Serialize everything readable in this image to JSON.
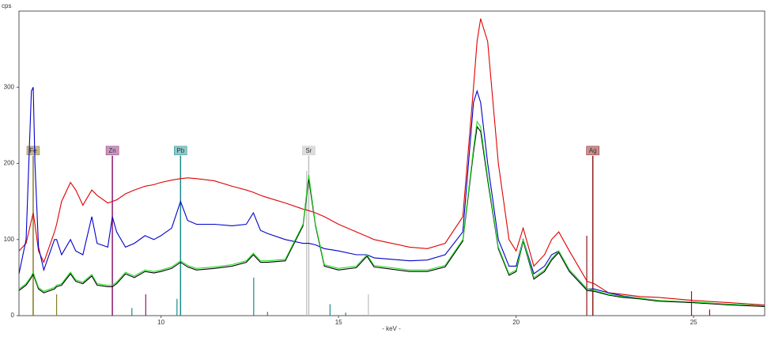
{
  "chart_data": {
    "type": "line",
    "ylabel": "cps",
    "xlabel": "- keV -",
    "xlim": [
      6,
      27
    ],
    "ylim": [
      0,
      400
    ],
    "xticks": [
      10,
      15,
      20,
      25
    ],
    "yticks": [
      0,
      100,
      200,
      300
    ],
    "x": [
      6.0,
      6.2,
      6.35,
      6.4,
      6.45,
      6.55,
      6.7,
      7.0,
      7.06,
      7.2,
      7.45,
      7.6,
      7.8,
      8.05,
      8.2,
      8.5,
      8.63,
      8.75,
      9.0,
      9.25,
      9.55,
      9.8,
      10.0,
      10.3,
      10.55,
      10.75,
      11.0,
      11.5,
      12.0,
      12.4,
      12.6,
      12.8,
      13.0,
      13.5,
      14.0,
      14.16,
      14.35,
      14.6,
      15.0,
      15.5,
      15.8,
      16.0,
      17.0,
      17.5,
      18.0,
      18.5,
      18.8,
      18.9,
      19.0,
      19.2,
      19.5,
      19.8,
      20.0,
      20.2,
      20.5,
      20.8,
      21.0,
      21.2,
      21.5,
      22.0,
      22.2,
      22.6,
      23.0,
      23.5,
      24.0,
      25.0,
      26.0,
      27.0
    ],
    "series": [
      {
        "color": "#e00000",
        "values": [
          85,
          95,
          125,
          135,
          120,
          85,
          70,
          110,
          120,
          150,
          175,
          165,
          145,
          165,
          158,
          148,
          150,
          152,
          160,
          165,
          170,
          172,
          175,
          178,
          180,
          181,
          180,
          177,
          170,
          165,
          162,
          158,
          155,
          148,
          140,
          138,
          135,
          130,
          120,
          110,
          104,
          100,
          90,
          88,
          95,
          130,
          300,
          360,
          390,
          360,
          200,
          100,
          85,
          115,
          65,
          80,
          100,
          110,
          85,
          45,
          42,
          30,
          28,
          25,
          24,
          20,
          17,
          14
        ]
      },
      {
        "color": "#0000cc",
        "values": [
          55,
          100,
          295,
          300,
          200,
          90,
          60,
          100,
          100,
          80,
          100,
          85,
          80,
          130,
          95,
          90,
          130,
          110,
          90,
          95,
          105,
          100,
          105,
          115,
          150,
          125,
          120,
          120,
          118,
          120,
          135,
          112,
          108,
          100,
          95,
          95,
          93,
          88,
          85,
          80,
          80,
          76,
          72,
          73,
          80,
          110,
          280,
          295,
          280,
          200,
          100,
          65,
          65,
          100,
          55,
          65,
          80,
          85,
          60,
          35,
          35,
          30,
          26,
          23,
          20,
          17,
          15,
          13
        ]
      },
      {
        "color": "#000000",
        "values": [
          33,
          40,
          50,
          55,
          48,
          35,
          30,
          35,
          38,
          40,
          55,
          45,
          42,
          52,
          40,
          38,
          38,
          42,
          55,
          50,
          58,
          56,
          58,
          62,
          70,
          64,
          60,
          62,
          65,
          70,
          80,
          70,
          70,
          72,
          118,
          180,
          118,
          65,
          60,
          63,
          78,
          64,
          58,
          58,
          64,
          98,
          215,
          248,
          242,
          178,
          88,
          53,
          58,
          98,
          48,
          58,
          73,
          83,
          58,
          33,
          32,
          27,
          24,
          22,
          19,
          17,
          14,
          12
        ]
      },
      {
        "color": "#22dd22",
        "values": [
          35,
          42,
          52,
          57,
          50,
          37,
          32,
          37,
          40,
          42,
          57,
          47,
          44,
          54,
          42,
          40,
          40,
          44,
          57,
          52,
          60,
          58,
          60,
          64,
          72,
          66,
          62,
          64,
          67,
          72,
          82,
          72,
          72,
          74,
          120,
          185,
          120,
          67,
          62,
          65,
          80,
          66,
          60,
          60,
          66,
          100,
          220,
          255,
          248,
          182,
          90,
          55,
          60,
          100,
          50,
          60,
          75,
          85,
          60,
          35,
          33,
          28,
          25,
          23,
          20,
          18,
          15,
          13
        ]
      }
    ],
    "markers": [
      {
        "label": "Fe",
        "energy": 6.4,
        "height": 210,
        "color": "#8b7d2a",
        "box": "#c8b88a",
        "lines": [
          [
            6.4,
            40
          ],
          [
            7.06,
            28
          ]
        ]
      },
      {
        "label": "Zn",
        "energy": 8.63,
        "height": 210,
        "color": "#8b1a6b",
        "box": "#c79ac0",
        "lines": [
          [
            9.57,
            28
          ]
        ]
      },
      {
        "label": "Pb",
        "energy": 10.55,
        "height": 210,
        "color": "#1a8a8a",
        "box": "#8fc8c8",
        "lines": [
          [
            9.18,
            10
          ],
          [
            10.45,
            22
          ],
          [
            12.61,
            50
          ],
          [
            13.0,
            5
          ],
          [
            14.76,
            15
          ],
          [
            15.2,
            4
          ]
        ]
      },
      {
        "label": "Sr",
        "energy": 14.16,
        "height": 210,
        "color": "#c0c0c0",
        "box": "#dddddd",
        "lines": [
          [
            14.1,
            190
          ],
          [
            15.84,
            28
          ]
        ]
      },
      {
        "label": "Ag",
        "energy": 22.16,
        "height": 210,
        "color": "#8b1a1a",
        "box": "#c89090",
        "lines": [
          [
            21.99,
            105
          ],
          [
            24.94,
            32
          ],
          [
            25.45,
            8
          ]
        ]
      }
    ]
  }
}
